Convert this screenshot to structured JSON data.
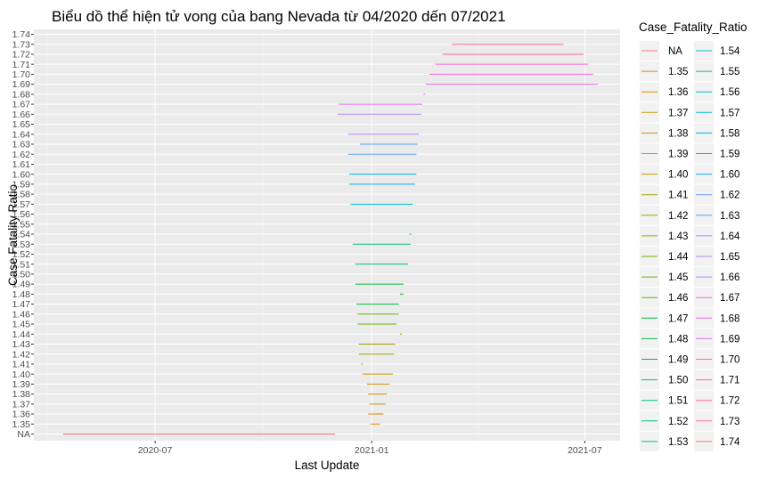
{
  "chart_data": {
    "type": "line",
    "title": "Biểu dồ thể hiện tử vong của bang Nevada từ 04/2020 dến 07/2021",
    "xlabel": "Last Update",
    "ylabel": "Case Fatality Ratio",
    "x_ticks": [
      "2020-07",
      "2021-01",
      "2021-07"
    ],
    "xlim": [
      "2020-03-20",
      "2021-07-31"
    ],
    "grid": true,
    "legend_title": "Case_Fatality_Ratio",
    "legend_position": "right",
    "levels": [
      "NA",
      "1.35",
      "1.36",
      "1.37",
      "1.38",
      "1.39",
      "1.40",
      "1.41",
      "1.42",
      "1.43",
      "1.44",
      "1.45",
      "1.46",
      "1.47",
      "1.48",
      "1.49",
      "1.50",
      "1.51",
      "1.52",
      "1.53",
      "1.54",
      "1.55",
      "1.56",
      "1.57",
      "1.58",
      "1.59",
      "1.60",
      "1.61",
      "1.62",
      "1.63",
      "1.64",
      "1.65",
      "1.66",
      "1.67",
      "1.68",
      "1.69",
      "1.70",
      "1.71",
      "1.72",
      "1.73",
      "1.74"
    ],
    "legend_entries": [
      "NA",
      "1.35",
      "1.36",
      "1.37",
      "1.38",
      "1.39",
      "1.40",
      "1.41",
      "1.42",
      "1.43",
      "1.44",
      "1.45",
      "1.46",
      "1.47",
      "1.48",
      "1.49",
      "1.50",
      "1.51",
      "1.52",
      "1.53",
      "1.54",
      "1.55",
      "1.56",
      "1.57",
      "1.58",
      "1.59",
      "1.60",
      "1.62",
      "1.63",
      "1.64",
      "1.65",
      "1.66",
      "1.67",
      "1.68",
      "1.69",
      "1.70",
      "1.71",
      "1.72",
      "1.73",
      "1.74"
    ],
    "colors": [
      "#F8766D",
      "#E58700",
      "#E58700",
      "#C99800",
      "#C99800",
      "#C99800",
      "#C99800",
      "#A3A500",
      "#A3A500",
      "#A3A500",
      "#6BB100",
      "#6BB100",
      "#6BB100",
      "#00BA38",
      "#00BA38",
      "#00BA38",
      "#00BF7D",
      "#00BF7D",
      "#00BF7D",
      "#00BF7D",
      "#00C0AF",
      "#00C0AF",
      "#00BCD8",
      "#00BCD8",
      "#00B0F6",
      "#00B0F6",
      "#00B0F6",
      "#619CFF",
      "#619CFF",
      "#B983FF",
      "#B983FF",
      "#B983FF",
      "#E76BF3",
      "#E76BF3",
      "#E76BF3",
      "#FD61D1",
      "#FD61D1",
      "#FF67A4",
      "#FF67A4",
      "#F8766D"
    ],
    "series": [
      {
        "y": "NA",
        "x": [
          "2020-04-14",
          "2020-12-01"
        ]
      },
      {
        "y": "1.35",
        "x": [
          "2020-12-31",
          "2021-01-08"
        ]
      },
      {
        "y": "1.36",
        "x": [
          "2020-12-29",
          "2021-01-11"
        ]
      },
      {
        "y": "1.37",
        "x": [
          "2020-12-30",
          "2021-01-13"
        ]
      },
      {
        "y": "1.38",
        "x": [
          "2020-12-29",
          "2021-01-14"
        ]
      },
      {
        "y": "1.39",
        "x": [
          "2020-12-28",
          "2021-01-16"
        ]
      },
      {
        "y": "1.40",
        "x": [
          "2020-12-24",
          "2021-01-19"
        ]
      },
      {
        "y": "1.41",
        "x": [
          "2020-12-23",
          "2020-12-24"
        ]
      },
      {
        "y": "1.42",
        "x": [
          "2020-12-21",
          "2021-01-20"
        ]
      },
      {
        "y": "1.43",
        "x": [
          "2020-12-21",
          "2021-01-21"
        ]
      },
      {
        "y": "1.44",
        "x": [
          "2021-01-25",
          "2021-01-25"
        ]
      },
      {
        "y": "1.45",
        "x": [
          "2020-12-20",
          "2021-01-22"
        ]
      },
      {
        "y": "1.46",
        "x": [
          "2020-12-20",
          "2021-01-24"
        ]
      },
      {
        "y": "1.47",
        "x": [
          "2020-12-19",
          "2021-01-24"
        ]
      },
      {
        "y": "1.48",
        "x": [
          "2021-01-25",
          "2021-01-28"
        ]
      },
      {
        "y": "1.49",
        "x": [
          "2020-12-18",
          "2021-01-28"
        ]
      },
      {
        "y": "1.51",
        "x": [
          "2020-12-18",
          "2021-02-01"
        ]
      },
      {
        "y": "1.53",
        "x": [
          "2020-12-16",
          "2021-02-03"
        ]
      },
      {
        "y": "1.54",
        "x": [
          "2021-02-02",
          "2021-02-03"
        ]
      },
      {
        "y": "1.57",
        "x": [
          "2020-12-14",
          "2021-02-05"
        ]
      },
      {
        "y": "1.59",
        "x": [
          "2020-12-13",
          "2021-02-07"
        ]
      },
      {
        "y": "1.60",
        "x": [
          "2020-12-13",
          "2021-02-08"
        ]
      },
      {
        "y": "1.62",
        "x": [
          "2020-12-12",
          "2021-02-08"
        ]
      },
      {
        "y": "1.63",
        "x": [
          "2020-12-22",
          "2021-02-09"
        ]
      },
      {
        "y": "1.64",
        "x": [
          "2020-12-12",
          "2021-02-10"
        ]
      },
      {
        "y": "1.66",
        "x": [
          "2020-12-03",
          "2021-02-12"
        ]
      },
      {
        "y": "1.67",
        "x": [
          "2020-12-04",
          "2021-02-13"
        ]
      },
      {
        "y": "1.68",
        "x": [
          "2021-02-14",
          "2021-02-14"
        ]
      },
      {
        "y": "1.69",
        "x": [
          "2021-02-16",
          "2021-07-12"
        ]
      },
      {
        "y": "1.70",
        "x": [
          "2021-02-19",
          "2021-07-08"
        ]
      },
      {
        "y": "1.71",
        "x": [
          "2021-02-24",
          "2021-07-04"
        ]
      },
      {
        "y": "1.72",
        "x": [
          "2021-03-02",
          "2021-06-30"
        ]
      },
      {
        "y": "1.73",
        "x": [
          "2021-03-10",
          "2021-06-13"
        ]
      }
    ]
  }
}
